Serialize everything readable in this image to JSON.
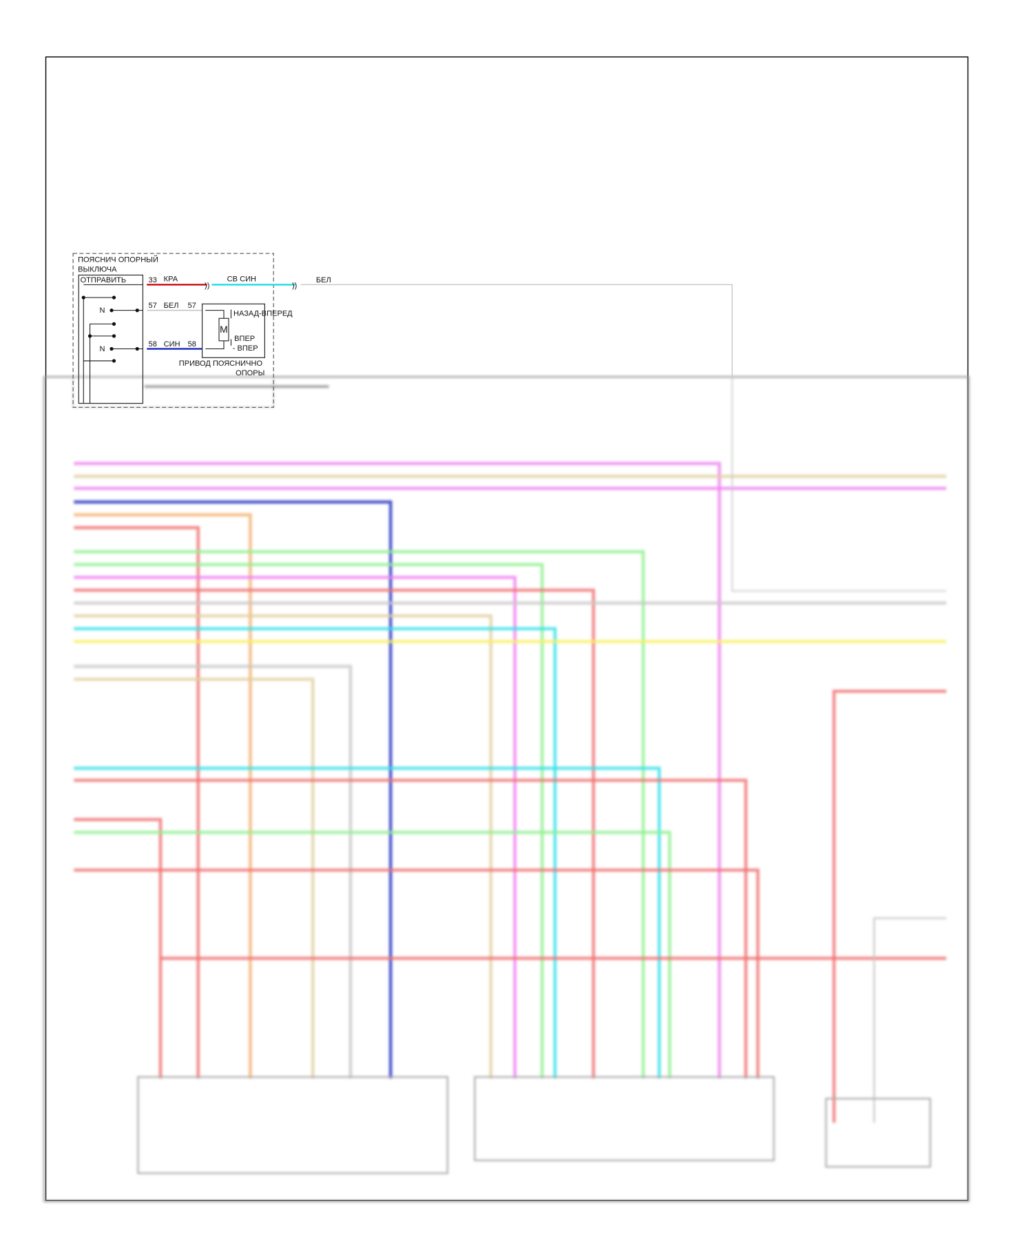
{
  "switch_block": {
    "title_line1": "ПОЯСНИЧ ОПОРНЫЙ",
    "title_line2": "ВЫКЛЮЧА",
    "send_label": "ОТПРАВИТЬ",
    "neutral_1": "N",
    "neutral_2": "N"
  },
  "wires": {
    "w33": {
      "pin": "33",
      "color_label": "КРА"
    },
    "w33_cont": {
      "color_label": "СВ СИН"
    },
    "w33_out": {
      "color_label": "БЕЛ"
    },
    "w57": {
      "pin_left": "57",
      "color_label": "БЕЛ",
      "pin_right": "57"
    },
    "w58": {
      "pin_left": "58",
      "color_label": "СИН",
      "pin_right": "58"
    }
  },
  "actuator": {
    "motor_label": "M",
    "dir_up": "НАЗАД-ВПЕРЕД",
    "dir_down_1": "ВПЕР",
    "dir_down_2": "- ВПЕР",
    "caption_line1": "ПРИВОД ПОЯСНИЧНО",
    "caption_line2": "ОПОРЫ"
  },
  "colors": {
    "red": "#d0202a",
    "light_blue": "#33e0e8",
    "white_wire": "#c8c8c8",
    "blue": "#2030c0",
    "magenta": "#f080f0",
    "tan": "#e0d0a0",
    "orange": "#f5b070",
    "pink_red": "#f07070",
    "green": "#90f090",
    "yellow": "#f8f060",
    "frame": "#000000"
  }
}
